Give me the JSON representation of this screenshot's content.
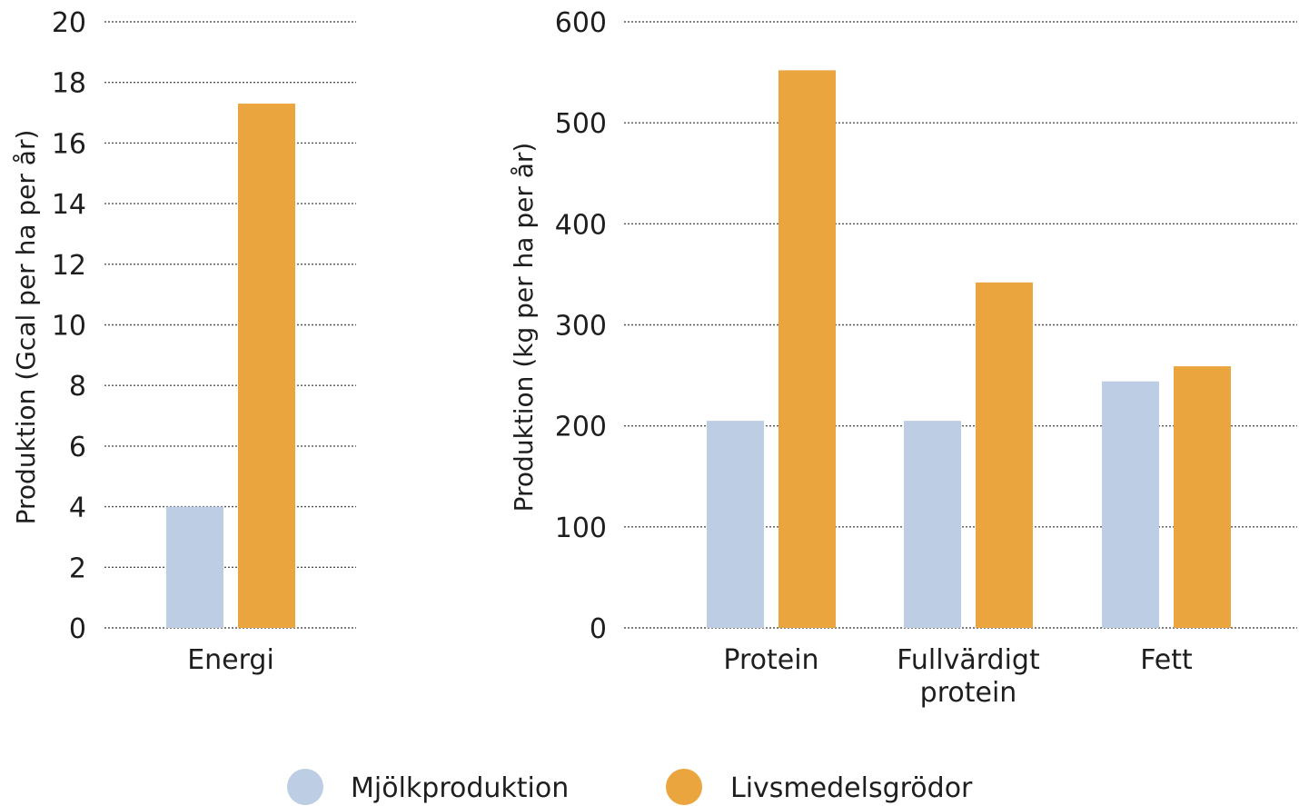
{
  "chart_data": [
    {
      "type": "bar",
      "categories": [
        "Energi"
      ],
      "series": [
        {
          "name": "Mjölkproduktion",
          "values": [
            4.0
          ]
        },
        {
          "name": "Livsmedelsgrödor",
          "values": [
            17.3
          ]
        }
      ],
      "xlabel": "",
      "ylabel": "Produktion (Gcal per ha per år)",
      "ylim": [
        0,
        20
      ],
      "yticks": [
        0,
        2,
        4,
        6,
        8,
        10,
        12,
        14,
        16,
        18,
        20
      ],
      "grid": true
    },
    {
      "type": "bar",
      "categories": [
        [
          "Protein"
        ],
        [
          "Fullvärdigt",
          "protein"
        ],
        [
          "Fett"
        ]
      ],
      "series": [
        {
          "name": "Mjölkproduktion",
          "values": [
            205,
            205,
            244
          ]
        },
        {
          "name": "Livsmedelsgrödor",
          "values": [
            552,
            342,
            259
          ]
        }
      ],
      "xlabel": "",
      "ylabel": "Produktion (kg per ha per år)",
      "ylim": [
        0,
        600
      ],
      "yticks": [
        0,
        100,
        200,
        300,
        400,
        500,
        600
      ],
      "grid": true
    }
  ],
  "legend": {
    "placement": "bottom-center",
    "items": [
      {
        "label": "Mjölkproduktion",
        "color": "#bccde4"
      },
      {
        "label": "Livsmedelsgrödor",
        "color": "#eba53f"
      }
    ]
  },
  "colors": {
    "series": [
      "#bccde4",
      "#eba53f"
    ],
    "grid": "#555555",
    "text": "#1e1e1e"
  }
}
